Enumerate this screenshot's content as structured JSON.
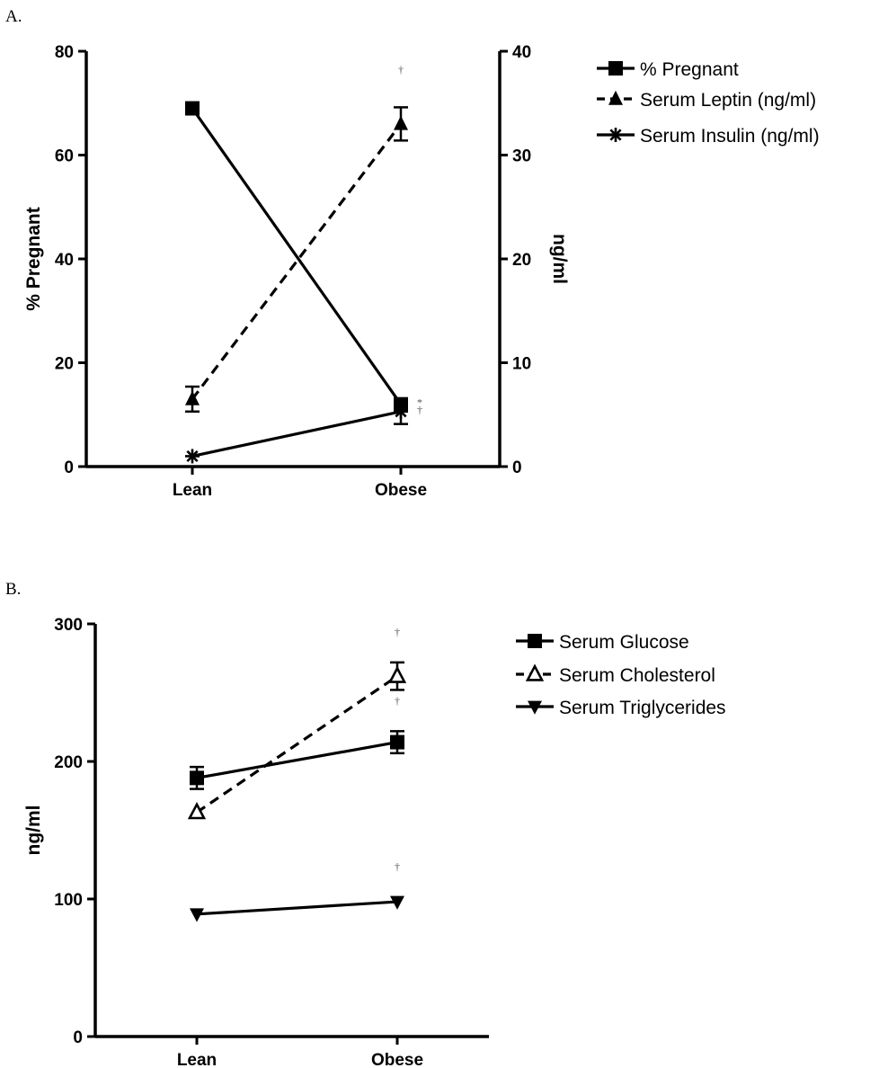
{
  "panels": [
    {
      "label": "A.",
      "x_categories": [
        "Lean",
        "Obese"
      ],
      "left_axis": {
        "title": "% Pregnant",
        "min": 0,
        "max": 80,
        "ticks": [
          0,
          20,
          40,
          60,
          80
        ]
      },
      "right_axis": {
        "title": "ng/ml",
        "min": 0,
        "max": 40,
        "ticks": [
          0,
          10,
          20,
          30,
          40
        ]
      },
      "legend": [
        {
          "label": "% Pregnant",
          "marker": "square",
          "dash": "solid"
        },
        {
          "label": "Serum Leptin (ng/ml)",
          "marker": "triangle",
          "dash": "dashed"
        },
        {
          "label": "Serum Insulin (ng/ml)",
          "marker": "asterisk",
          "dash": "solid"
        }
      ],
      "annotations": [
        {
          "text": "†",
          "series": "Serum Leptin (ng/ml)",
          "category": "Obese",
          "position": "above"
        },
        {
          "text": "*",
          "series": "% Pregnant",
          "category": "Obese",
          "position": "right"
        },
        {
          "text": "†",
          "series": "Serum Insulin (ng/ml)",
          "category": "Obese",
          "position": "right"
        }
      ]
    },
    {
      "label": "B.",
      "x_categories": [
        "Lean",
        "Obese"
      ],
      "left_axis": {
        "title": "ng/ml",
        "min": 0,
        "max": 300,
        "ticks": [
          0,
          100,
          200,
          300
        ]
      },
      "legend": [
        {
          "label": "Serum Glucose",
          "marker": "square",
          "dash": "solid"
        },
        {
          "label": "Serum Cholesterol",
          "marker": "open-triangle",
          "dash": "dashed"
        },
        {
          "label": "Serum Triglycerides",
          "marker": "down-triangle",
          "dash": "solid"
        }
      ],
      "annotations": [
        {
          "text": "†",
          "series": "Serum Cholesterol",
          "category": "Obese",
          "position": "above"
        },
        {
          "text": "†",
          "series": "Serum Glucose",
          "category": "Obese",
          "position": "above"
        },
        {
          "text": "†",
          "series": "Serum Triglycerides",
          "category": "Obese",
          "position": "above"
        }
      ]
    }
  ],
  "chart_data": [
    {
      "type": "line",
      "categories": [
        "Lean",
        "Obese"
      ],
      "title": "",
      "xlabel": "",
      "ylabel": "% Pregnant",
      "ylabel_right": "ng/ml",
      "ylim": [
        0,
        80
      ],
      "ylim_right": [
        0,
        40
      ],
      "grid": false,
      "legend_position": "right",
      "series": [
        {
          "name": "% Pregnant",
          "axis": "left",
          "values": [
            69,
            12
          ],
          "errors": [
            0,
            0
          ],
          "marker": "square",
          "dash": "solid"
        },
        {
          "name": "Serum Leptin (ng/ml)",
          "axis": "right",
          "values": [
            6.5,
            33
          ],
          "errors": [
            1.2,
            1.6
          ],
          "marker": "triangle",
          "dash": "dashed"
        },
        {
          "name": "Serum Insulin (ng/ml)",
          "axis": "right",
          "values": [
            1,
            5.3
          ],
          "errors": [
            0,
            1.2
          ],
          "marker": "asterisk",
          "dash": "solid"
        }
      ]
    },
    {
      "type": "line",
      "categories": [
        "Lean",
        "Obese"
      ],
      "title": "",
      "xlabel": "",
      "ylabel": "ng/ml",
      "ylim": [
        0,
        300
      ],
      "grid": false,
      "legend_position": "right",
      "series": [
        {
          "name": "Serum Glucose",
          "values": [
            188,
            214
          ],
          "errors": [
            8,
            8
          ],
          "marker": "square",
          "dash": "solid"
        },
        {
          "name": "Serum Cholesterol",
          "values": [
            163,
            262
          ],
          "errors": [
            0,
            10
          ],
          "marker": "open-triangle",
          "dash": "dashed"
        },
        {
          "name": "Serum Triglycerides",
          "values": [
            89,
            98
          ],
          "errors": [
            0,
            0
          ],
          "marker": "down-triangle",
          "dash": "solid"
        }
      ]
    }
  ]
}
